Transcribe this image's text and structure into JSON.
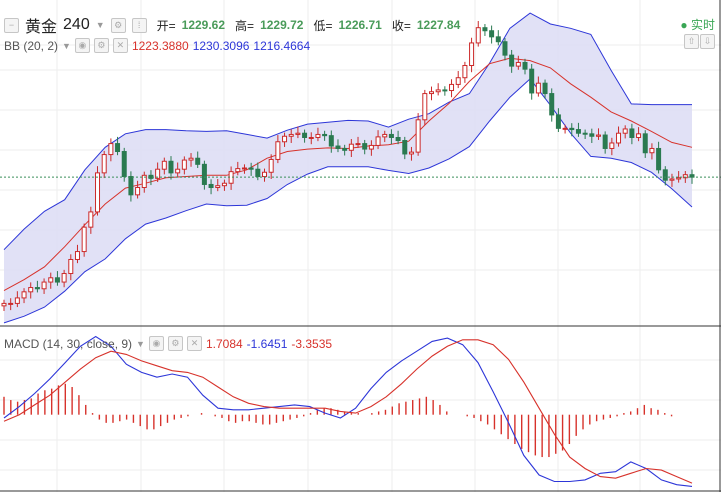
{
  "header": {
    "symbol": "黄金",
    "timeframe": "240",
    "open_label": "开=",
    "open_value": "1229.62",
    "high_label": "高=",
    "high_value": "1229.72",
    "low_label": "低=",
    "low_value": "1226.71",
    "close_label": "收=",
    "close_value": "1227.84",
    "realtime_label": "实时"
  },
  "indicators": {
    "bb_label": "BB (20, 2)",
    "bb_mid": "1223.3880",
    "bb_upper": "1230.3096",
    "bb_lower": "1216.4664",
    "macd_label": "MACD (14, 30, close, 9)",
    "macd_hist": "1.7084",
    "macd_line": "-1.6451",
    "macd_signal": "-3.3535"
  },
  "colors": {
    "band_fill": "#dcdcf5",
    "band_line": "#2d36d8",
    "mid_line": "#d7322b",
    "candle_up": "#cc2a2a",
    "candle_down": "#2a7a50",
    "open_high_low_close": "#4a9b5a",
    "grid": "#eeeeee",
    "dotted_last_price": "#3a8f5a"
  },
  "chart_data": {
    "type": "candlestick",
    "symbol": "黄金",
    "timeframe": "240",
    "price_y_range": [
      1199.5,
      1249.5
    ],
    "price_closes": [
      1201.4,
      1201.4,
      1202.3,
      1203.3,
      1204.0,
      1203.8,
      1204.9,
      1205.6,
      1204.9,
      1206.3,
      1208.6,
      1209.9,
      1213.9,
      1216.4,
      1222.8,
      1225.8,
      1227.6,
      1226.3,
      1222.2,
      1219.2,
      1220.4,
      1222.4,
      1221.9,
      1223.4,
      1224.7,
      1222.8,
      1223.4,
      1224.9,
      1225.2,
      1224.2,
      1220.9,
      1220.4,
      1220.7,
      1221.1,
      1223.0,
      1223.5,
      1223.6,
      1223.4,
      1222.2,
      1222.9,
      1225.0,
      1227.9,
      1228.8,
      1229.1,
      1229.3,
      1228.6,
      1228.6,
      1229.1,
      1228.9,
      1227.2,
      1226.8,
      1226.5,
      1227.5,
      1227.6,
      1226.7,
      1227.3,
      1228.7,
      1229.1,
      1228.6,
      1228.1,
      1225.9,
      1226.2,
      1231.5,
      1235.8,
      1236.1,
      1236.4,
      1236.3,
      1237.3,
      1238.4,
      1240.4,
      1244.1,
      1246.6,
      1246.1,
      1245.1,
      1244.3,
      1242.1,
      1240.3,
      1240.9,
      1239.8,
      1235.9,
      1237.5,
      1235.8,
      1232.3,
      1230.1,
      1230.1,
      1229.9,
      1229.3,
      1229.2,
      1228.8,
      1229.0,
      1226.8,
      1227.7,
      1229.3,
      1230.0,
      1228.6,
      1229.2,
      1226.1,
      1226.8,
      1223.3,
      1221.6,
      1221.8,
      1222.0,
      1222.5,
      1222.1
    ],
    "price_open": 1201.0,
    "bb_upper": [
      1210.2,
      1213.6,
      1216.5,
      1218.4,
      1223.3,
      1227.0,
      1229.2,
      1229.9,
      1229.9,
      1229.7,
      1229.6,
      1229.7,
      1229.1,
      1228.5,
      1229.8,
      1230.8,
      1231.1,
      1231.4,
      1231.3,
      1230.3,
      1231.6,
      1232.5,
      1234.4,
      1235.8,
      1240.8,
      1246.5,
      1249.0,
      1247.2,
      1246.5,
      1245.5,
      1239.6,
      1234.1,
      1234.0,
      1234.0,
      1234.0
    ],
    "bb_mid": [
      1203.5,
      1205.3,
      1207.4,
      1210.7,
      1214.3,
      1217.7,
      1220.3,
      1221.1,
      1222.0,
      1222.2,
      1222.4,
      1222.4,
      1223.3,
      1225.2,
      1226.3,
      1226.7,
      1226.9,
      1226.8,
      1227.2,
      1227.4,
      1228.0,
      1231.3,
      1234.2,
      1237.8,
      1240.7,
      1241.6,
      1241.2,
      1240.0,
      1237.4,
      1235.2,
      1232.8,
      1231.3,
      1229.6,
      1227.8,
      1227.0
    ],
    "bb_lower": [
      1198.2,
      1199.3,
      1200.8,
      1203.4,
      1206.6,
      1208.7,
      1212.0,
      1214.4,
      1215.4,
      1216.6,
      1217.7,
      1217.4,
      1217.5,
      1218.6,
      1220.9,
      1222.6,
      1223.8,
      1223.8,
      1223.8,
      1223.2,
      1222.7,
      1223.6,
      1225.1,
      1227.1,
      1231.3,
      1235.2,
      1238.2,
      1233.9,
      1229.3,
      1225.5,
      1225.2,
      1224.5,
      1222.9,
      1220.2,
      1217.2
    ],
    "macd_y_range": [
      -4.5,
      5.2
    ],
    "macd_line": [
      -0.2,
      0.5,
      1.3,
      2.2,
      3.2,
      4.2,
      4.8,
      4.2,
      3.1,
      2.6,
      2.3,
      2.5,
      2.3,
      1.2,
      0.4,
      0.3,
      0.3,
      0.4,
      0.5,
      0.6,
      0.5,
      0.1,
      -0.2,
      0.4,
      1.6,
      2.6,
      3.3,
      3.9,
      4.5,
      4.7,
      4.3,
      3.2,
      1.4,
      -0.5,
      -2.5,
      -3.7,
      -4.1,
      -4.1,
      -4.0,
      -3.6,
      -3.5,
      -2.9,
      -3.3,
      -4.0,
      -4.3,
      -4.4
    ],
    "macd_signal": [
      -0.4,
      0.0,
      0.6,
      1.2,
      2.0,
      2.8,
      3.5,
      3.9,
      3.7,
      3.3,
      3.0,
      2.7,
      2.6,
      2.3,
      1.7,
      1.1,
      0.7,
      0.5,
      0.4,
      0.4,
      0.4,
      0.4,
      0.2,
      0.1,
      0.5,
      1.1,
      1.9,
      2.8,
      3.6,
      4.2,
      4.6,
      4.6,
      4.3,
      3.4,
      2.0,
      0.4,
      -1.2,
      -2.6,
      -3.3,
      -3.8,
      -3.9,
      -3.6,
      -3.3,
      -3.4,
      -3.8,
      -4.2
    ],
    "macd_histogram": [
      1.1,
      0.9,
      0.8,
      0.9,
      1.0,
      1.3,
      1.5,
      1.6,
      1.8,
      1.9,
      1.7,
      1.2,
      0.6,
      0.1,
      -0.3,
      -0.5,
      -0.5,
      -0.4,
      -0.3,
      -0.5,
      -0.7,
      -0.9,
      -0.9,
      -0.7,
      -0.5,
      -0.3,
      -0.2,
      -0.1,
      0.0,
      0.1,
      0.0,
      -0.1,
      -0.2,
      -0.4,
      -0.5,
      -0.4,
      -0.4,
      -0.5,
      -0.6,
      -0.6,
      -0.5,
      -0.4,
      -0.3,
      -0.2,
      -0.1,
      0.1,
      0.3,
      0.4,
      0.4,
      0.3,
      0.2,
      0.1,
      0.1,
      0.0,
      0.1,
      0.2,
      0.3,
      0.5,
      0.7,
      0.8,
      0.9,
      1.0,
      1.1,
      0.9,
      0.6,
      0.2,
      0.0,
      0.0,
      -0.1,
      -0.2,
      -0.4,
      -0.6,
      -0.9,
      -1.2,
      -1.5,
      -1.8,
      -2.1,
      -2.3,
      -2.5,
      -2.6,
      -2.6,
      -2.4,
      -2.2,
      -1.8,
      -1.3,
      -0.9,
      -0.6,
      -0.4,
      -0.3,
      -0.2,
      -0.1,
      0.1,
      0.2,
      0.4,
      0.6,
      0.4,
      0.3,
      0.1,
      -0.1,
      0.0,
      0.0,
      0.0
    ]
  }
}
